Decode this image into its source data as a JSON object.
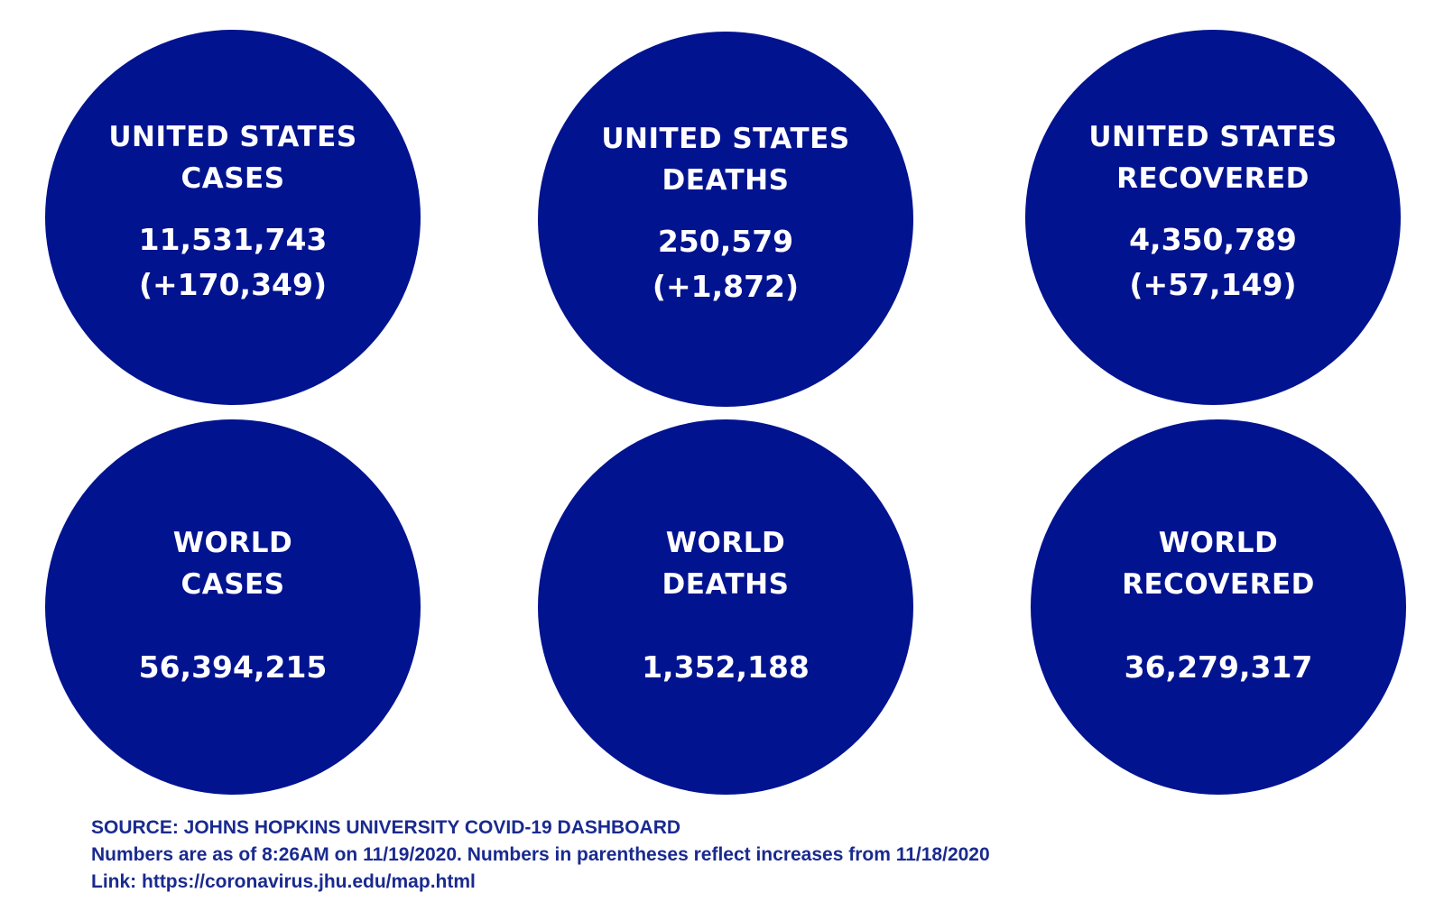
{
  "stats": {
    "us_cases": {
      "title_line1": "UNITED STATES",
      "title_line2": "CASES",
      "total": "11,531,743",
      "increase": "(+170,349)"
    },
    "us_deaths": {
      "title_line1": "UNITED STATES",
      "title_line2": "DEATHS",
      "total": "250,579",
      "increase": "(+1,872)"
    },
    "us_recovered": {
      "title_line1": "UNITED STATES",
      "title_line2": "RECOVERED",
      "total": "4,350,789",
      "increase": "(+57,149)"
    },
    "world_cases": {
      "title_line1": "WORLD",
      "title_line2": "CASES",
      "total": "56,394,215"
    },
    "world_deaths": {
      "title_line1": "WORLD",
      "title_line2": "DEATHS",
      "total": "1,352,188"
    },
    "world_recovered": {
      "title_line1": "WORLD",
      "title_line2": "RECOVERED",
      "total": "36,279,317"
    }
  },
  "footer": {
    "source": "SOURCE: JOHNS HOPKINS UNIVERSITY COVID-19 DASHBOARD",
    "note": "Numbers are as of 8:26AM on 11/19/2020. Numbers in parentheses reflect increases from 11/18/2020",
    "link": "Link: https://coronavirus.jhu.edu/map.html"
  },
  "colors": {
    "circle_fill": "#02138f",
    "circle_text": "#ffffff",
    "footer_text": "#1a2a8f"
  }
}
